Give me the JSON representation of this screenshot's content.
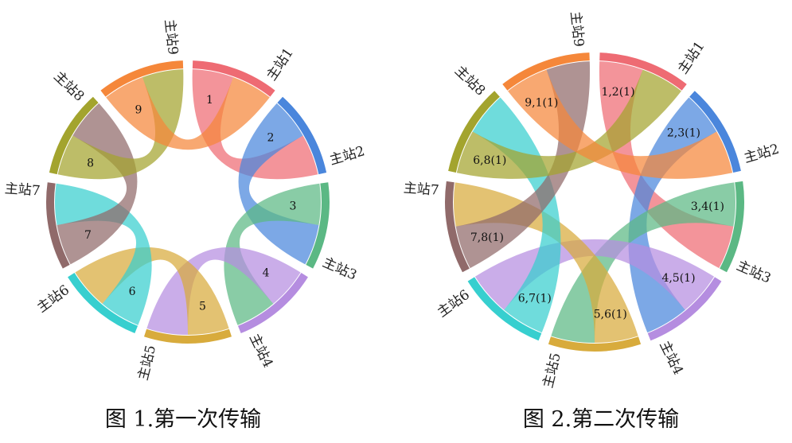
{
  "colors": {
    "主站1": "#ee6b73",
    "主站2": "#4a86dc",
    "主站3": "#5bb884",
    "主站4": "#b58de0",
    "主站5": "#d8ab3c",
    "主站6": "#37cfcf",
    "主站7": "#906a6a",
    "主站8": "#a3a42e",
    "主站9": "#f5873a"
  },
  "diagrams": [
    {
      "caption": "图 1.第一次传输",
      "nodes": [
        "主站1",
        "主站2",
        "主站3",
        "主站4",
        "主站5",
        "主站6",
        "主站7",
        "主站8",
        "主站9"
      ],
      "chords": [
        {
          "from": 1,
          "to": 2,
          "label": "1"
        },
        {
          "from": 2,
          "to": 3,
          "label": "2"
        },
        {
          "from": 3,
          "to": 4,
          "label": "3"
        },
        {
          "from": 4,
          "to": 5,
          "label": "4"
        },
        {
          "from": 5,
          "to": 6,
          "label": "5"
        },
        {
          "from": 6,
          "to": 7,
          "label": "6"
        },
        {
          "from": 7,
          "to": 8,
          "label": "7"
        },
        {
          "from": 8,
          "to": 9,
          "label": "8"
        },
        {
          "from": 9,
          "to": 1,
          "label": "9"
        }
      ]
    },
    {
      "caption": "图 2.第二次传输",
      "nodes": [
        "主站1",
        "主站2",
        "主站3",
        "主站4",
        "主站5",
        "主站6",
        "主站7",
        "主站8",
        "主站9"
      ],
      "chords": [
        {
          "from": 1,
          "to": 3,
          "label": "1,2(1)"
        },
        {
          "from": 2,
          "to": 4,
          "label": "2,3(1)"
        },
        {
          "from": 3,
          "to": 5,
          "label": "3,4(1)"
        },
        {
          "from": 4,
          "to": 6,
          "label": "4,5(1)"
        },
        {
          "from": 5,
          "to": 7,
          "label": "5,6(1)"
        },
        {
          "from": 6,
          "to": 8,
          "label": "6,7(1)"
        },
        {
          "from": 7,
          "to": 9,
          "label": "7,8(1)"
        },
        {
          "from": 8,
          "to": 1,
          "label": "6,8(1)"
        },
        {
          "from": 9,
          "to": 2,
          "label": "9,1(1)"
        }
      ]
    }
  ]
}
